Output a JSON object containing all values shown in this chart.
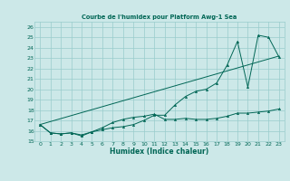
{
  "title": "Courbe de l'humidex pour Platform Awg-1 Sea",
  "xlabel": "Humidex (Indice chaleur)",
  "bg_color": "#cce8e8",
  "grid_color": "#99cccc",
  "line_color": "#006655",
  "xlim": [
    -0.5,
    23.5
  ],
  "ylim": [
    15,
    26.5
  ],
  "xticks": [
    0,
    1,
    2,
    3,
    4,
    5,
    6,
    7,
    8,
    9,
    10,
    11,
    12,
    13,
    14,
    15,
    16,
    17,
    18,
    19,
    20,
    21,
    22,
    23
  ],
  "yticks": [
    15,
    16,
    17,
    18,
    19,
    20,
    21,
    22,
    23,
    24,
    25,
    26
  ],
  "line1_x": [
    0,
    1,
    2,
    3,
    4,
    5,
    6,
    7,
    8,
    9,
    10,
    11,
    12,
    13,
    14,
    15,
    16,
    17,
    18,
    19,
    20,
    21,
    22,
    23
  ],
  "line1_y": [
    16.6,
    15.8,
    15.7,
    15.8,
    15.6,
    15.9,
    16.1,
    16.3,
    16.4,
    16.6,
    17.0,
    17.5,
    17.5,
    18.5,
    19.3,
    19.8,
    20.0,
    20.6,
    22.3,
    24.6,
    20.2,
    25.2,
    25.0,
    23.1
  ],
  "line2_x": [
    0,
    1,
    2,
    3,
    4,
    5,
    6,
    7,
    8,
    9,
    10,
    11,
    12,
    13,
    14,
    15,
    16,
    17,
    18,
    19,
    20,
    21,
    22,
    23
  ],
  "line2_y": [
    16.6,
    15.8,
    15.7,
    15.8,
    15.5,
    15.9,
    16.3,
    16.8,
    17.1,
    17.3,
    17.4,
    17.6,
    17.1,
    17.1,
    17.2,
    17.1,
    17.1,
    17.2,
    17.4,
    17.7,
    17.7,
    17.8,
    17.9,
    18.1
  ],
  "line3_x": [
    0,
    23
  ],
  "line3_y": [
    16.6,
    23.2
  ]
}
